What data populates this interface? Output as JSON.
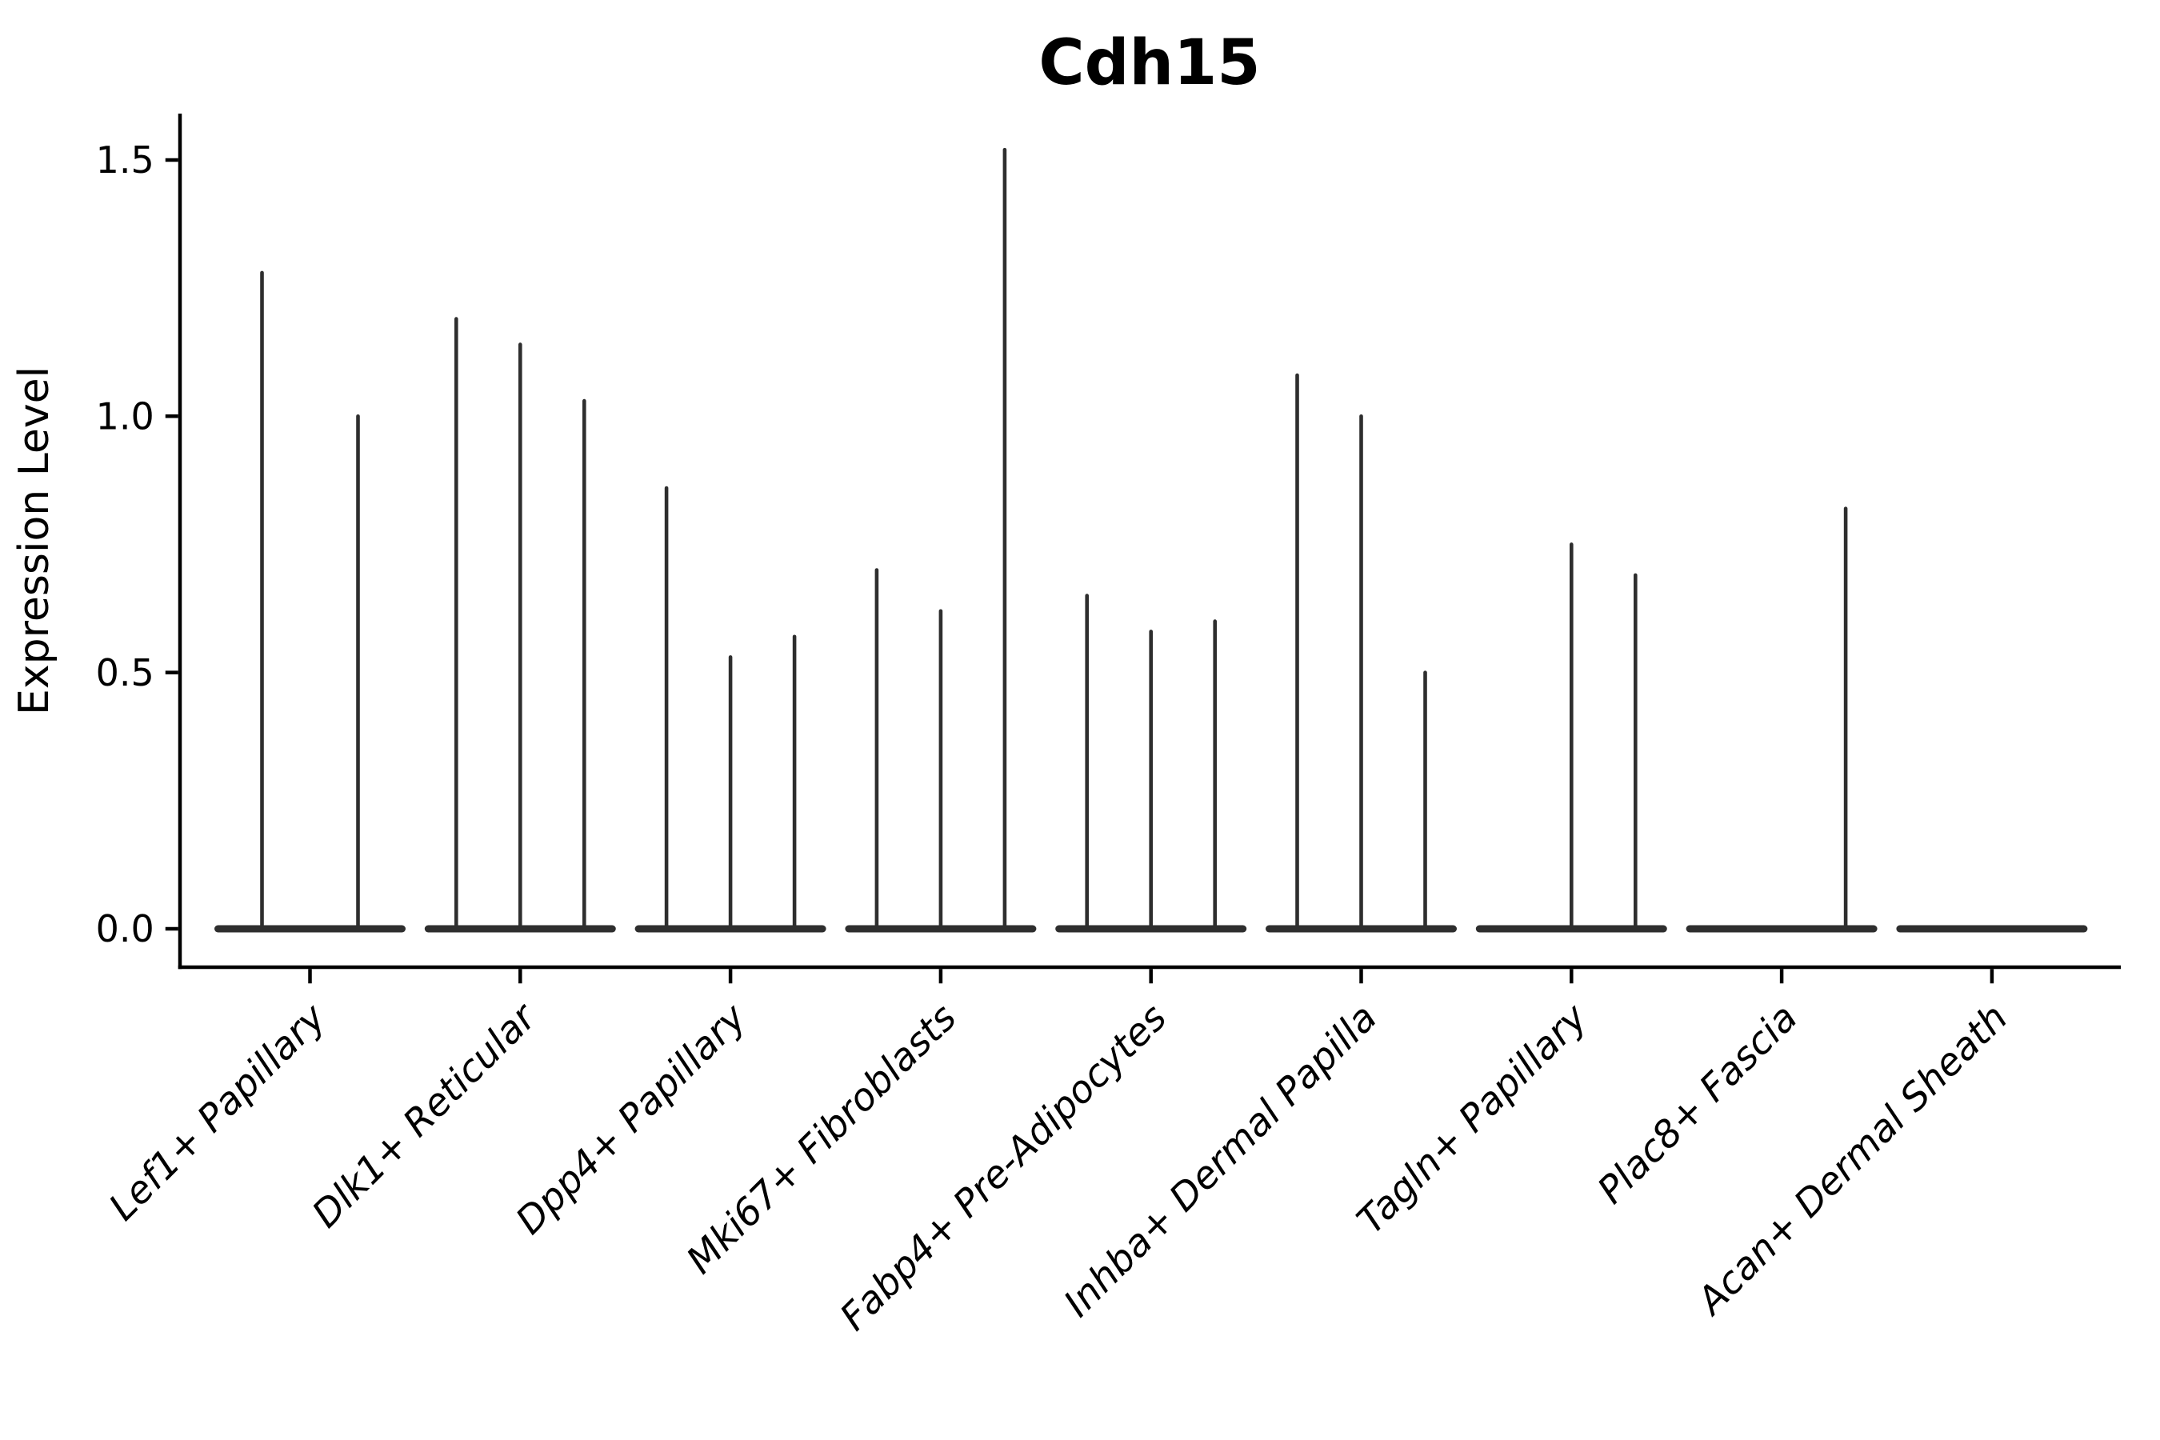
{
  "chart_data": {
    "type": "violin",
    "title": "Cdh15",
    "xlabel": "",
    "ylabel": "Expression Level",
    "ytick_labels": [
      "0.0",
      "0.5",
      "1.0",
      "1.5"
    ],
    "ytick_values": [
      0.0,
      0.5,
      1.0,
      1.5
    ],
    "ylim": [
      -0.075,
      1.59
    ],
    "grid": false,
    "legend": "none",
    "description": "Violin plot of Cdh15 expression; each cell-type group contains up to 3 very thin violins (spikes) rising from a flat baseline at 0.",
    "categories": [
      "Lef1+ Papillary",
      "Dlk1+ Reticular",
      "Dpp4+ Papillary",
      "Mki67+ Fibroblasts",
      "Fabp4+ Pre-Adipocytes",
      "Inhba+ Dermal Papilla",
      "Tagln+ Papillary",
      "Plac8+ Fascia",
      "Acan+ Dermal Sheath"
    ],
    "groups": [
      {
        "category": "Lef1+ Papillary",
        "spike_peaks": [
          1.28,
          1.0
        ]
      },
      {
        "category": "Dlk1+ Reticular",
        "spike_peaks": [
          1.19,
          1.14,
          1.03
        ]
      },
      {
        "category": "Dpp4+ Papillary",
        "spike_peaks": [
          0.86,
          0.53,
          0.57
        ]
      },
      {
        "category": "Mki67+ Fibroblasts",
        "spike_peaks": [
          0.7,
          0.62,
          1.52
        ]
      },
      {
        "category": "Fabp4+ Pre-Adipocytes",
        "spike_peaks": [
          0.65,
          0.58,
          0.6
        ]
      },
      {
        "category": "Inhba+ Dermal Papilla",
        "spike_peaks": [
          1.08,
          1.0,
          0.5
        ]
      },
      {
        "category": "Tagln+ Papillary",
        "spike_peaks": [
          0.0,
          0.75,
          0.69
        ]
      },
      {
        "category": "Plac8+ Fascia",
        "spike_peaks": [
          0.0,
          0.0,
          0.82
        ]
      },
      {
        "category": "Acan+ Dermal Sheath",
        "spike_peaks": [
          0.0,
          0.0,
          0.0
        ]
      }
    ],
    "colors": {
      "violin": "#2e2e2e",
      "axis": "#000000",
      "text": "#000000",
      "background": "#ffffff"
    }
  }
}
